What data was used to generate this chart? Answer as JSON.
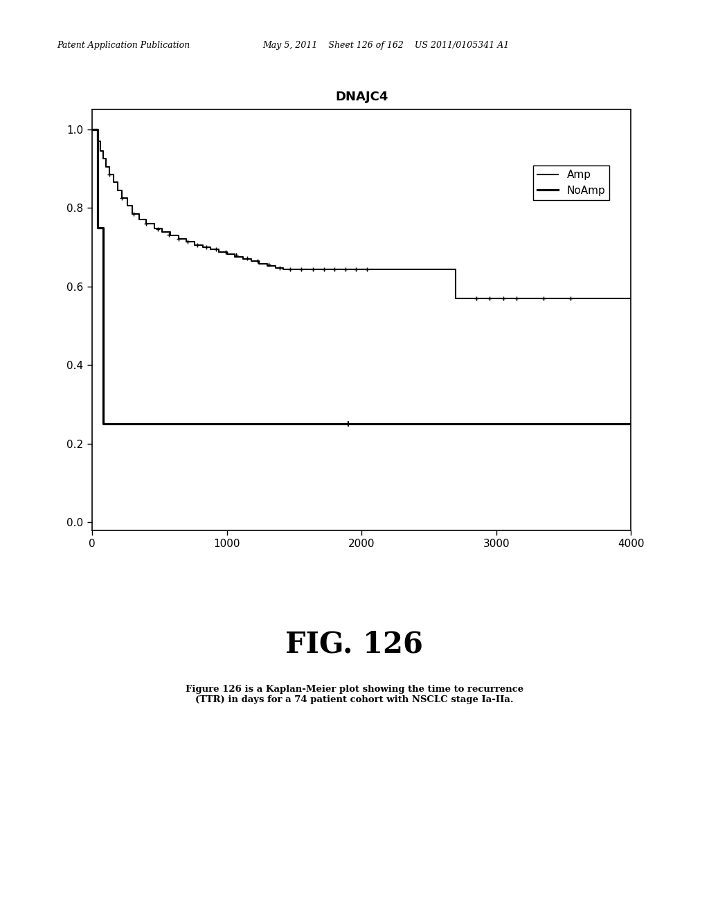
{
  "title": "DNAJC4",
  "title_fontsize": 13,
  "title_fontweight": "bold",
  "xlim": [
    0,
    4000
  ],
  "ylim": [
    -0.02,
    1.05
  ],
  "xticks": [
    0,
    1000,
    2000,
    3000,
    4000
  ],
  "yticks": [
    0.0,
    0.2,
    0.4,
    0.6,
    0.8,
    1.0
  ],
  "fig_caption": "FIG. 126",
  "fig_caption2": "Figure 126 is a Kaplan-Meier plot showing the time to recurrence\n(TTR) in days for a 74 patient cohort with NSCLC stage Ia-IIa.",
  "header_left": "Patent Application Publication",
  "header_right": "May 5, 2011    Sheet 126 of 162    US 2011/0105341 A1",
  "amp_x": [
    0,
    40,
    60,
    80,
    100,
    130,
    160,
    190,
    220,
    260,
    300,
    350,
    400,
    460,
    520,
    580,
    640,
    700,
    760,
    820,
    880,
    940,
    1000,
    1060,
    1120,
    1180,
    1240,
    1300,
    1360,
    1420,
    1480,
    1540,
    1600,
    1700,
    1800,
    1900,
    2000,
    2700,
    4000
  ],
  "amp_y": [
    1.0,
    0.97,
    0.945,
    0.925,
    0.905,
    0.885,
    0.865,
    0.845,
    0.825,
    0.805,
    0.785,
    0.77,
    0.76,
    0.748,
    0.738,
    0.73,
    0.722,
    0.714,
    0.706,
    0.7,
    0.694,
    0.688,
    0.682,
    0.676,
    0.67,
    0.664,
    0.658,
    0.652,
    0.648,
    0.644,
    0.644,
    0.644,
    0.644,
    0.644,
    0.644,
    0.644,
    0.644,
    0.57,
    0.57
  ],
  "noamp_x": [
    0,
    40,
    40,
    80,
    80,
    4000
  ],
  "noamp_y": [
    1.0,
    1.0,
    0.75,
    0.75,
    0.25,
    0.25
  ],
  "amp_censor_x": [
    130,
    220,
    310,
    400,
    490,
    570,
    640,
    710,
    780,
    850,
    920,
    990,
    1070,
    1150,
    1230,
    1310,
    1390,
    1470,
    1550,
    1640,
    1720,
    1800,
    1880,
    1960,
    2040,
    2850,
    2950,
    3050,
    3150,
    3350,
    3550
  ],
  "amp_censor_y": [
    0.885,
    0.825,
    0.785,
    0.76,
    0.745,
    0.732,
    0.722,
    0.714,
    0.706,
    0.7,
    0.694,
    0.688,
    0.68,
    0.672,
    0.664,
    0.656,
    0.648,
    0.644,
    0.644,
    0.644,
    0.644,
    0.644,
    0.644,
    0.644,
    0.644,
    0.57,
    0.57,
    0.57,
    0.57,
    0.57,
    0.57
  ],
  "noamp_censor_x": [
    1900
  ],
  "noamp_censor_y": [
    0.25
  ],
  "background_color": "#ffffff",
  "line_color": "#000000",
  "line_width": 1.5
}
